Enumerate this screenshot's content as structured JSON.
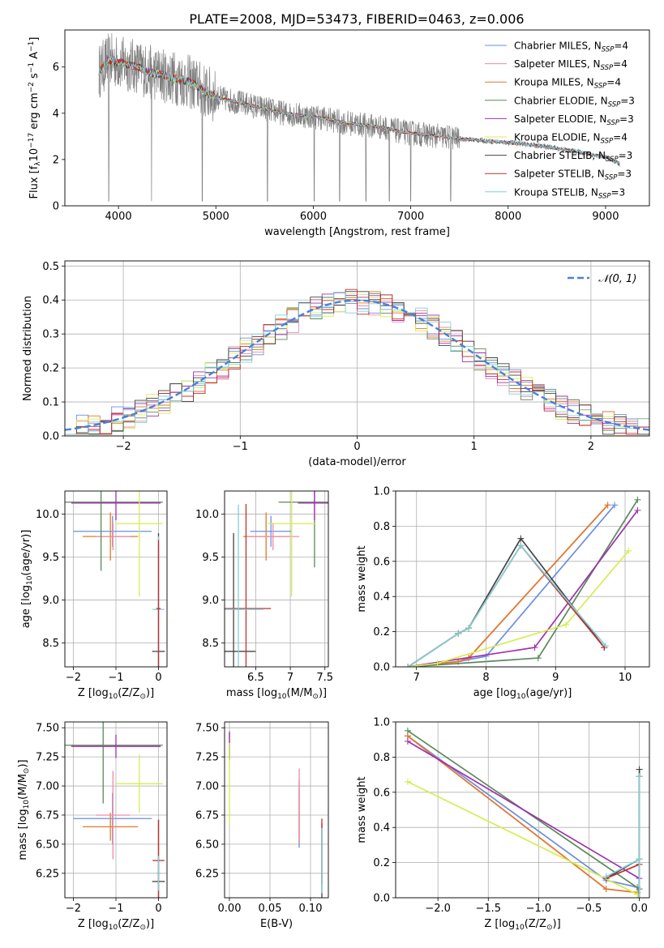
{
  "title": "PLATE=2008, MJD=53473, FIBERID=0463, z=0.006",
  "colors": {
    "Chabrier MILES": "#6a8fe0",
    "Salpeter MILES": "#f08aa8",
    "Kroupa MILES": "#e07a2a",
    "Chabrier ELODIE": "#5a8a5a",
    "Salpeter ELODIE": "#a030b0",
    "Kroupa ELODIE": "#d8ec50",
    "Chabrier STELIB": "#444444",
    "Salpeter STELIB": "#c03030",
    "Kroupa STELIB": "#80d0d8",
    "data": "#808080",
    "normal": "#4a80d8"
  },
  "chart_data": [
    {
      "id": "spectrum",
      "type": "line",
      "xlabel": "wavelength [Angstrom, rest frame]",
      "ylabel_parts": {
        "pre": "Flux [f",
        "sub": "λ",
        "mid": "10",
        "sup1": "−17",
        "mid2": " erg cm",
        "sup2": "−2",
        "mid3": " s",
        "sup3": "−1",
        "mid4": " A",
        "sup4": "−1",
        "post": "]"
      },
      "xlim": [
        3450,
        9450
      ],
      "ylim": [
        0,
        7.6
      ],
      "xticks": [
        4000,
        5000,
        6000,
        7000,
        8000,
        9000
      ],
      "yticks": [
        0,
        2,
        4,
        6
      ],
      "legend": [
        {
          "label": "Chabrier MILES, N",
          "sub": "SSP",
          "eq": "=4",
          "key": "Chabrier MILES"
        },
        {
          "label": "Salpeter MILES, N",
          "sub": "SSP",
          "eq": "=4",
          "key": "Salpeter MILES"
        },
        {
          "label": "Kroupa MILES, N",
          "sub": "SSP",
          "eq": "=4",
          "key": "Kroupa MILES"
        },
        {
          "label": "Chabrier ELODIE, N",
          "sub": "SSP",
          "eq": "=3",
          "key": "Chabrier ELODIE"
        },
        {
          "label": "Salpeter ELODIE, N",
          "sub": "SSP",
          "eq": "=3",
          "key": "Salpeter ELODIE"
        },
        {
          "label": "Kroupa ELODIE, N",
          "sub": "SSP",
          "eq": "=4",
          "key": "Kroupa ELODIE"
        },
        {
          "label": "Chabrier STELIB, N",
          "sub": "SSP",
          "eq": "=3",
          "key": "Chabrier STELIB"
        },
        {
          "label": "Salpeter STELIB, N",
          "sub": "SSP",
          "eq": "=3",
          "key": "Salpeter STELIB"
        },
        {
          "label": "Kroupa STELIB, N",
          "sub": "SSP",
          "eq": "=3",
          "key": "Kroupa STELIB"
        }
      ],
      "data_anchor": [
        [
          3800,
          5.8
        ],
        [
          3900,
          6.3
        ],
        [
          4000,
          6.2
        ],
        [
          4100,
          6.1
        ],
        [
          4200,
          6.0
        ],
        [
          4300,
          5.8
        ],
        [
          4400,
          5.7
        ],
        [
          4500,
          5.6
        ],
        [
          4600,
          5.5
        ],
        [
          4700,
          5.4
        ],
        [
          4800,
          5.2
        ],
        [
          4900,
          4.9
        ],
        [
          5000,
          4.7
        ],
        [
          5100,
          4.6
        ],
        [
          5200,
          4.5
        ],
        [
          5300,
          4.4
        ],
        [
          5400,
          4.3
        ],
        [
          5500,
          4.2
        ],
        [
          5700,
          4.0
        ],
        [
          5900,
          3.9
        ],
        [
          6100,
          3.8
        ],
        [
          6300,
          3.6
        ],
        [
          6500,
          3.5
        ],
        [
          6700,
          3.4
        ],
        [
          6900,
          3.2
        ],
        [
          7100,
          3.1
        ],
        [
          7300,
          3.0
        ],
        [
          7500,
          2.9
        ],
        [
          7800,
          2.8
        ],
        [
          8100,
          2.7
        ],
        [
          8400,
          2.55
        ],
        [
          8700,
          2.35
        ],
        [
          9000,
          2.1
        ],
        [
          9150,
          1.8
        ]
      ],
      "deep_lines": [
        3790,
        3900,
        4340,
        4860,
        5530,
        6010,
        6270,
        6540,
        6780,
        7000,
        7410
      ]
    },
    {
      "id": "residuals",
      "type": "step",
      "xlabel": "(data-model)/error",
      "ylabel": "Normed distribution",
      "xlim": [
        -2.5,
        2.5
      ],
      "ylim": [
        0,
        0.515
      ],
      "xticks": [
        -2,
        -1,
        0,
        1,
        2
      ],
      "yticks": [
        0.0,
        0.1,
        0.2,
        0.3,
        0.4,
        0.5
      ],
      "bin_width": 0.1,
      "legend_label": "𝒩(0, 1)"
    },
    {
      "id": "age_vs_Z",
      "type": "errorbar",
      "xlabel": {
        "pre": "Z [log",
        "sub": "10",
        "post": "(Z/Z",
        "sub2": "⊙",
        "end": ")]"
      },
      "ylabel": {
        "pre": "age  [log",
        "sub": "10",
        "post": "(age/yr)]"
      },
      "xlim": [
        -2.2,
        0.2
      ],
      "ylim": [
        8.22,
        10.27
      ],
      "xticks": [
        -2,
        -1,
        0
      ],
      "yticks": [
        8.5,
        9.0,
        9.5,
        10.0
      ],
      "points": [
        {
          "key": "Chabrier MILES",
          "x": -1.08,
          "y": 9.8,
          "xerr": 0.92,
          "yerr": 0.18
        },
        {
          "key": "Kroupa MILES",
          "x": -1.13,
          "y": 9.74,
          "xerr": 0.65,
          "yerr": 0.28
        },
        {
          "key": "Salpeter MILES",
          "x": -1.07,
          "y": 9.74,
          "xerr": 0.4,
          "yerr": 0.16
        },
        {
          "key": "Chabrier ELODIE",
          "x": -1.35,
          "y": 10.14,
          "xerr": 1.45,
          "yerr": 0.8
        },
        {
          "key": "Salpeter ELODIE",
          "x": -1.0,
          "y": 10.13,
          "xerr": 1.05,
          "yerr": 0.2
        },
        {
          "key": "Kroupa ELODIE",
          "x": -0.45,
          "y": 9.89,
          "xerr": 0.55,
          "yerr": 0.85
        },
        {
          "key": "Chabrier STELIB",
          "x": 0.0,
          "y": 8.4,
          "xerr": 0.15,
          "yerr": 1.38
        },
        {
          "key": "Kroupa STELIB",
          "x": 0.0,
          "y": 8.89,
          "xerr": 0.14,
          "yerr": 0.85
        },
        {
          "key": "Salpeter STELIB",
          "x": 0.0,
          "y": 8.9,
          "xerr": 0.05,
          "yerr": 0.8
        }
      ]
    },
    {
      "id": "age_vs_mass",
      "type": "errorbar",
      "xlabel": {
        "pre": "mass [log",
        "sub": "10",
        "post": "(M/M",
        "sub2": "⊙",
        "end": ")]"
      },
      "xlim": [
        6.05,
        7.55
      ],
      "ylim": [
        8.22,
        10.27
      ],
      "xticks": [
        6.5,
        7.0,
        7.5
      ],
      "yticks": [
        8.5,
        9.0,
        9.5,
        10.0
      ],
      "points": [
        {
          "key": "Chabrier MILES",
          "x": 6.72,
          "y": 9.8,
          "xerr": 0.3,
          "yerr": 0.18
        },
        {
          "key": "Kroupa MILES",
          "x": 6.65,
          "y": 9.74,
          "xerr": 0.33,
          "yerr": 0.28
        },
        {
          "key": "Salpeter MILES",
          "x": 6.75,
          "y": 9.74,
          "xerr": 0.38,
          "yerr": 0.16
        },
        {
          "key": "Chabrier ELODIE",
          "x": 7.35,
          "y": 10.14,
          "xerr": 0.52,
          "yerr": 0.76
        },
        {
          "key": "Salpeter ELODIE",
          "x": 7.35,
          "y": 10.13,
          "xerr": 0.24,
          "yerr": 0.2
        },
        {
          "key": "Kroupa ELODIE",
          "x": 7.02,
          "y": 9.89,
          "xerr": 0.35,
          "yerr": 0.85
        },
        {
          "key": "Chabrier STELIB",
          "x": 6.18,
          "y": 8.4,
          "xerr": 0.32,
          "yerr": 1.38
        },
        {
          "key": "Salpeter STELIB",
          "x": 6.36,
          "y": 8.9,
          "xerr": 0.36,
          "yerr": 1.22
        },
        {
          "key": "Kroupa STELIB",
          "x": 6.25,
          "y": 8.89,
          "xerr": 0.36,
          "yerr": 1.22
        }
      ]
    },
    {
      "id": "weight_vs_age",
      "type": "line",
      "xlabel": {
        "pre": "age  [log",
        "sub": "10",
        "post": "(age/yr)]"
      },
      "ylabel": "mass weight",
      "xlim": [
        6.7,
        10.35
      ],
      "ylim": [
        0,
        1.0
      ],
      "xticks": [
        7,
        8,
        9,
        10
      ],
      "yticks": [
        0.0,
        0.2,
        0.4,
        0.6,
        0.8,
        1.0
      ],
      "series": [
        {
          "key": "Chabrier MILES",
          "x": [
            6.88,
            7.6,
            8.0,
            9.85
          ],
          "y": [
            0.0,
            0.03,
            0.06,
            0.92
          ]
        },
        {
          "key": "Salpeter MILES",
          "x": [
            6.88,
            7.6,
            7.75,
            9.75
          ],
          "y": [
            0.0,
            0.03,
            0.05,
            0.92
          ]
        },
        {
          "key": "Kroupa MILES",
          "x": [
            6.88,
            7.6,
            7.75,
            9.75
          ],
          "y": [
            0.0,
            0.03,
            0.05,
            0.92
          ]
        },
        {
          "key": "Chabrier ELODIE",
          "x": [
            6.88,
            8.75,
            10.18
          ],
          "y": [
            0.0,
            0.05,
            0.95
          ]
        },
        {
          "key": "Salpeter ELODIE",
          "x": [
            6.88,
            8.7,
            10.18
          ],
          "y": [
            0.0,
            0.11,
            0.89
          ]
        },
        {
          "key": "Kroupa ELODIE",
          "x": [
            6.88,
            7.3,
            9.15,
            10.05
          ],
          "y": [
            0.0,
            0.02,
            0.24,
            0.66
          ]
        },
        {
          "key": "Chabrier STELIB",
          "x": [
            6.88,
            7.6,
            7.75,
            8.5,
            9.7
          ],
          "y": [
            0.0,
            0.19,
            0.22,
            0.73,
            0.11
          ]
        },
        {
          "key": "Salpeter STELIB",
          "x": [
            6.88,
            7.6,
            7.75,
            8.5,
            9.7
          ],
          "y": [
            0.0,
            0.19,
            0.22,
            0.69,
            0.11
          ]
        },
        {
          "key": "Kroupa STELIB",
          "x": [
            6.88,
            7.6,
            7.75,
            8.5,
            9.72
          ],
          "y": [
            0.0,
            0.19,
            0.22,
            0.69,
            0.12
          ]
        }
      ]
    },
    {
      "id": "mass_vs_Z",
      "type": "errorbar",
      "xlabel": {
        "pre": "Z [log",
        "sub": "10",
        "post": "(Z/Z",
        "sub2": "⊙",
        "end": ")]"
      },
      "ylabel": {
        "pre": "mass [log",
        "sub": "10",
        "post": "(M/M",
        "sub2": "⊙",
        "end": ")]"
      },
      "xlim": [
        -2.2,
        0.2
      ],
      "ylim": [
        6.04,
        7.55
      ],
      "xticks": [
        -2,
        -1,
        0
      ],
      "yticks": [
        6.25,
        6.5,
        6.75,
        7.0,
        7.25,
        7.5
      ],
      "points": [
        {
          "key": "Chabrier MILES",
          "x": -1.08,
          "y": 6.72,
          "xerr": 0.92,
          "yerr": 0.22
        },
        {
          "key": "Kroupa MILES",
          "x": -1.13,
          "y": 6.65,
          "xerr": 0.65,
          "yerr": 0.12
        },
        {
          "key": "Salpeter MILES",
          "x": -1.07,
          "y": 6.75,
          "xerr": 0.4,
          "yerr": 0.38
        },
        {
          "key": "Chabrier ELODIE",
          "x": -1.3,
          "y": 7.35,
          "xerr": 1.4,
          "yerr": 0.5
        },
        {
          "key": "Salpeter ELODIE",
          "x": -1.0,
          "y": 7.34,
          "xerr": 1.05,
          "yerr": 0.1
        },
        {
          "key": "Kroupa ELODIE",
          "x": -0.45,
          "y": 7.02,
          "xerr": 0.55,
          "yerr": 0.25
        },
        {
          "key": "Chabrier STELIB",
          "x": 0.0,
          "y": 6.18,
          "xerr": 0.15,
          "yerr": 0.53
        },
        {
          "key": "Salpeter STELIB",
          "x": 0.0,
          "y": 6.36,
          "xerr": 0.14,
          "yerr": 0.35
        },
        {
          "key": "Kroupa STELIB",
          "x": 0.0,
          "y": 6.25,
          "xerr": 0.05,
          "yerr": 0.15
        }
      ]
    },
    {
      "id": "mass_vs_EBV",
      "type": "errorbar",
      "xlabel": "E(B-V)",
      "xlim": [
        -0.006,
        0.122
      ],
      "ylim": [
        6.04,
        7.55
      ],
      "xticks": [
        0.0,
        0.05,
        0.1
      ],
      "yticks": [
        6.25,
        6.5,
        6.75,
        7.0,
        7.25,
        7.5
      ],
      "points": [
        {
          "key": "Chabrier ELODIE",
          "x": 0.0,
          "y": 7.35,
          "xerr": 0,
          "yerr": 0.12
        },
        {
          "key": "Salpeter ELODIE",
          "x": 0.0,
          "y": 7.34,
          "xerr": 0,
          "yerr": 0.12
        },
        {
          "key": "Kroupa ELODIE",
          "x": 0.0,
          "y": 7.02,
          "xerr": 0,
          "yerr": 0.35
        },
        {
          "key": "Chabrier MILES",
          "x": 0.086,
          "y": 6.72,
          "xerr": 0,
          "yerr": 0.25
        },
        {
          "key": "Kroupa MILES",
          "x": 0.086,
          "y": 6.78,
          "xerr": 0,
          "yerr": 0.27
        },
        {
          "key": "Salpeter MILES",
          "x": 0.086,
          "y": 6.83,
          "xerr": 0,
          "yerr": 0.32
        },
        {
          "key": "Chabrier STELIB",
          "x": 0.114,
          "y": 6.36,
          "xerr": 0,
          "yerr": 0.32
        },
        {
          "key": "Salpeter STELIB",
          "x": 0.114,
          "y": 6.44,
          "xerr": 0,
          "yerr": 0.28
        },
        {
          "key": "Kroupa STELIB",
          "x": 0.114,
          "y": 6.36,
          "xerr": 0,
          "yerr": 0.28
        }
      ]
    },
    {
      "id": "weight_vs_Z",
      "type": "line",
      "xlabel": {
        "pre": "Z [log",
        "sub": "10",
        "post": "(Z/Z",
        "sub2": "⊙",
        "end": ")]"
      },
      "ylabel": "mass weight",
      "xlim": [
        -2.42,
        0.1
      ],
      "ylim": [
        0,
        1.0
      ],
      "xticks": [
        -2.0,
        -1.5,
        -1.0,
        -0.5,
        0.0
      ],
      "yticks": [
        0.0,
        0.2,
        0.4,
        0.6,
        0.8,
        1.0
      ],
      "series": [
        {
          "key": "Chabrier MILES",
          "x": [
            -2.3,
            -0.33,
            -0.02,
            0.0
          ],
          "y": [
            0.92,
            0.1,
            0.06,
            0.0
          ]
        },
        {
          "key": "Salpeter MILES",
          "x": [
            -2.3,
            -0.33,
            -0.02,
            0.0
          ],
          "y": [
            0.92,
            0.05,
            0.03,
            0.0
          ]
        },
        {
          "key": "Kroupa MILES",
          "x": [
            -2.3,
            -0.33,
            -0.02,
            0.0
          ],
          "y": [
            0.92,
            0.05,
            0.03,
            0.0
          ]
        },
        {
          "key": "Chabrier ELODIE",
          "x": [
            -2.3,
            0.0,
            0.0
          ],
          "y": [
            0.95,
            0.05,
            0.0
          ]
        },
        {
          "key": "Salpeter ELODIE",
          "x": [
            -2.3,
            0.0,
            0.0
          ],
          "y": [
            0.89,
            0.11,
            0.0
          ]
        },
        {
          "key": "Kroupa ELODIE",
          "x": [
            -2.3,
            -0.02,
            0.0
          ],
          "y": [
            0.66,
            0.02,
            0.0
          ]
        },
        {
          "key": "Chabrier STELIB",
          "x": [
            -0.33,
            0.0,
            0.0,
            0.0
          ],
          "y": [
            0.11,
            0.22,
            0.73,
            0.0
          ]
        },
        {
          "key": "Salpeter STELIB",
          "x": [
            -0.33,
            0.0,
            0.0,
            0.0
          ],
          "y": [
            0.11,
            0.19,
            0.69,
            0.0
          ]
        },
        {
          "key": "Kroupa STELIB",
          "x": [
            -0.33,
            0.0,
            0.0,
            0.0
          ],
          "y": [
            0.12,
            0.22,
            0.69,
            0.0
          ]
        }
      ]
    }
  ]
}
